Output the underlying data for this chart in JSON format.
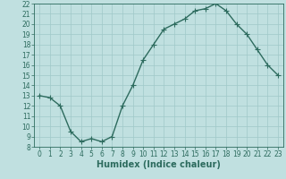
{
  "x": [
    0,
    1,
    2,
    3,
    4,
    5,
    6,
    7,
    8,
    9,
    10,
    11,
    12,
    13,
    14,
    15,
    16,
    17,
    18,
    19,
    20,
    21,
    22,
    23
  ],
  "y": [
    13,
    12.8,
    12,
    9.5,
    8.5,
    8.8,
    8.5,
    9,
    12,
    14,
    16.5,
    18,
    19.5,
    20,
    20.5,
    21.3,
    21.5,
    22,
    21.3,
    20,
    19,
    17.5,
    16,
    15
  ],
  "xlabel": "Humidex (Indice chaleur)",
  "xlim_min": -0.5,
  "xlim_max": 23.5,
  "ylim_min": 8,
  "ylim_max": 22,
  "yticks": [
    8,
    9,
    10,
    11,
    12,
    13,
    14,
    15,
    16,
    17,
    18,
    19,
    20,
    21,
    22
  ],
  "xticks": [
    0,
    1,
    2,
    3,
    4,
    5,
    6,
    7,
    8,
    9,
    10,
    11,
    12,
    13,
    14,
    15,
    16,
    17,
    18,
    19,
    20,
    21,
    22,
    23
  ],
  "line_color": "#2d6b5e",
  "marker_color": "#2d6b5e",
  "bg_color": "#c0e0e0",
  "grid_color": "#a0c8c8",
  "tick_label_color": "#2d6b5e",
  "xlabel_color": "#2d6b5e",
  "xlabel_fontsize": 7,
  "tick_fontsize": 5.5,
  "line_width": 1.0,
  "marker_size": 4,
  "marker_ew": 0.8
}
